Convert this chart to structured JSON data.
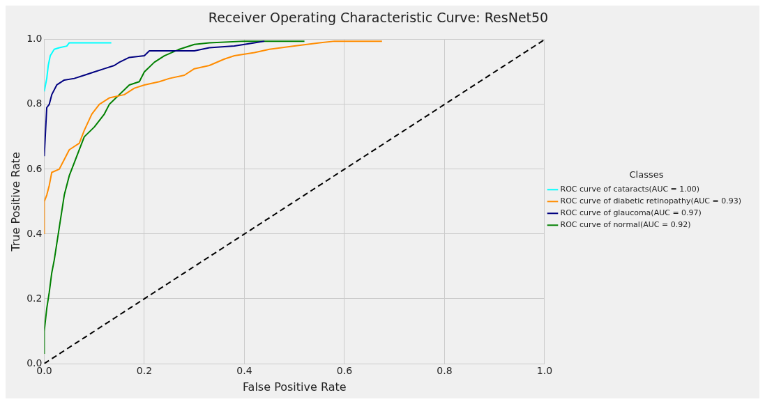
{
  "chart_data": {
    "type": "line",
    "title": "Receiver Operating Characteristic Curve: ResNet50",
    "xlabel": "False Positive Rate",
    "ylabel": "True Positive Rate",
    "legend_title": "Classes",
    "legend": "right",
    "grid": true,
    "marker": "none",
    "xlim": [
      0,
      1
    ],
    "ylim": [
      0,
      1
    ],
    "xticks": [
      {
        "value": 0,
        "label": "0.0"
      },
      {
        "value": 0.2,
        "label": "0.2"
      },
      {
        "value": 0.4,
        "label": "0.4"
      },
      {
        "value": 0.6,
        "label": "0.6"
      },
      {
        "value": 0.8,
        "label": "0.8"
      },
      {
        "value": 1,
        "label": "1.0"
      }
    ],
    "yticks": [
      {
        "value": 0,
        "label": "0.0"
      },
      {
        "value": 0.2,
        "label": "0.2"
      },
      {
        "value": 0.4,
        "label": "0.4"
      },
      {
        "value": 0.6,
        "label": "0.6"
      },
      {
        "value": 0.8,
        "label": "0.8"
      },
      {
        "value": 1,
        "label": "1.0"
      }
    ],
    "series": [
      {
        "name": "ROC curve of cataracts(AUC = 1.00)",
        "color": "#00ffff",
        "line_style": "solid",
        "x": [
          0,
          0.005,
          0.008,
          0.012,
          0.02,
          0.03,
          0.045,
          0.05,
          0.134
        ],
        "values": [
          0.84,
          0.88,
          0.92,
          0.95,
          0.97,
          0.975,
          0.98,
          0.99,
          0.99
        ]
      },
      {
        "name": "ROC curve of diabetic retinopathy(AUC = 0.93)",
        "color": "#ff8c00",
        "line_style": "solid",
        "x": [
          0,
          0,
          0.005,
          0.01,
          0.015,
          0.03,
          0.04,
          0.05,
          0.07,
          0.08,
          0.095,
          0.11,
          0.13,
          0.16,
          0.18,
          0.2,
          0.23,
          0.25,
          0.28,
          0.3,
          0.33,
          0.36,
          0.38,
          0.42,
          0.45,
          0.5,
          0.55,
          0.58,
          0.675
        ],
        "values": [
          0.4,
          0.5,
          0.52,
          0.55,
          0.59,
          0.6,
          0.63,
          0.66,
          0.68,
          0.72,
          0.77,
          0.8,
          0.82,
          0.83,
          0.85,
          0.86,
          0.87,
          0.88,
          0.89,
          0.91,
          0.92,
          0.94,
          0.95,
          0.96,
          0.97,
          0.98,
          0.99,
          0.995,
          0.995
        ]
      },
      {
        "name": "ROC curve of glaucoma(AUC = 0.97)",
        "color": "#000080",
        "line_style": "solid",
        "x": [
          0,
          0.005,
          0.01,
          0.015,
          0.025,
          0.04,
          0.06,
          0.08,
          0.1,
          0.12,
          0.14,
          0.15,
          0.17,
          0.2,
          0.21,
          0.3,
          0.33,
          0.38,
          0.42,
          0.44
        ],
        "values": [
          0.64,
          0.79,
          0.8,
          0.83,
          0.86,
          0.875,
          0.88,
          0.89,
          0.9,
          0.91,
          0.92,
          0.93,
          0.945,
          0.95,
          0.965,
          0.965,
          0.975,
          0.98,
          0.99,
          0.995
        ]
      },
      {
        "name": "ROC curve of normal(AUC = 0.92)",
        "color": "#008000",
        "line_style": "solid",
        "x": [
          0,
          0,
          0.005,
          0.01,
          0.015,
          0.02,
          0.025,
          0.03,
          0.035,
          0.04,
          0.05,
          0.06,
          0.07,
          0.08,
          0.1,
          0.12,
          0.13,
          0.15,
          0.17,
          0.19,
          0.2,
          0.22,
          0.24,
          0.27,
          0.3,
          0.33,
          0.4,
          0.52
        ],
        "values": [
          0.03,
          0.1,
          0.17,
          0.22,
          0.28,
          0.32,
          0.37,
          0.42,
          0.47,
          0.52,
          0.58,
          0.62,
          0.66,
          0.7,
          0.73,
          0.77,
          0.8,
          0.83,
          0.86,
          0.87,
          0.9,
          0.93,
          0.95,
          0.97,
          0.985,
          0.99,
          0.995,
          0.995
        ]
      },
      {
        "color": "#000000",
        "line_style": "dashed",
        "x": [
          0,
          1
        ],
        "values": [
          0,
          1
        ]
      }
    ]
  }
}
